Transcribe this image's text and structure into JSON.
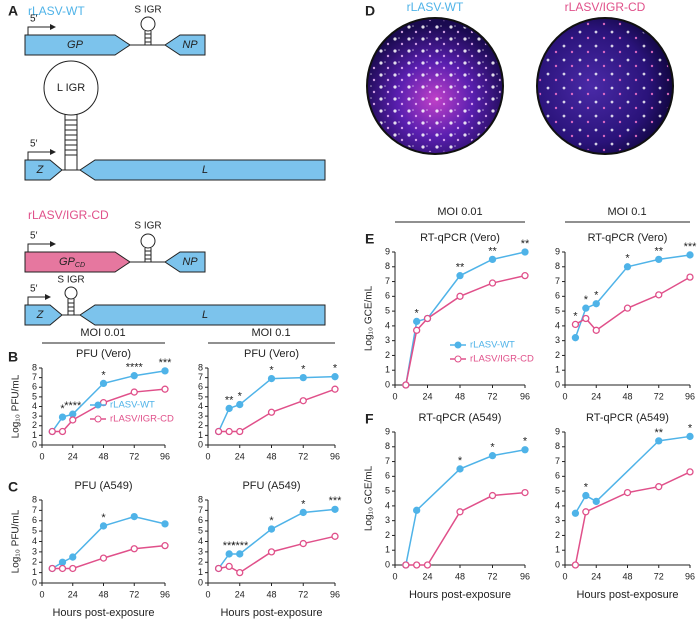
{
  "panel_labels": [
    "A",
    "B",
    "C",
    "D",
    "E",
    "F"
  ],
  "diagram": {
    "wt": {
      "label": "rLASV-WT",
      "s_segment": {
        "five_prime": "5′",
        "igr": "S IGR",
        "gene1": "GP",
        "gene2": "NP"
      },
      "l_segment": {
        "five_prime": "5′",
        "igr": "L IGR",
        "gene1": "Z",
        "gene2": "L"
      }
    },
    "cd": {
      "label": "rLASV/IGR-CD",
      "s_segment": {
        "five_prime": "5′",
        "igr": "S IGR",
        "gene1": {
          "main": "GP",
          "sub": "CD"
        },
        "gene2": "NP"
      },
      "l_segment": {
        "five_prime": "5′",
        "igr": "S IGR",
        "gene1": "Z",
        "gene2": "L"
      }
    }
  },
  "images": {
    "titles": [
      "rLASV-WT",
      "rLASV/IGR-CD"
    ]
  },
  "group_headers": [
    "MOI 0.01",
    "MOI 0.1",
    "MOI 0.01",
    "MOI 0.1"
  ],
  "chart_data": [
    {
      "type": "line",
      "title": "PFU (Vero)",
      "ylabel": "Log₁₀ PFU/mL",
      "x": [
        8,
        16,
        24,
        48,
        72,
        96
      ],
      "xlim": [
        0,
        96
      ],
      "xticks": [
        0,
        24,
        48,
        72,
        96
      ],
      "ylim": [
        0,
        8
      ],
      "yticks": [
        0,
        1,
        2,
        3,
        4,
        5,
        6,
        7,
        8
      ],
      "legend": "lower right",
      "series": [
        {
          "name": "rLASV-WT",
          "color": "#4fb3e8",
          "marker": "filled",
          "values": [
            1.4,
            2.9,
            3.2,
            6.4,
            7.2,
            7.7
          ]
        },
        {
          "name": "rLASV/IGR-CD",
          "color": "#e0508a",
          "marker": "open",
          "values": [
            1.4,
            1.4,
            2.6,
            4.4,
            5.5,
            5.8
          ]
        }
      ],
      "annotations": [
        {
          "x": 16,
          "text": "*"
        },
        {
          "x": 24,
          "text": "****"
        },
        {
          "x": 48,
          "text": "*"
        },
        {
          "x": 72,
          "text": "****"
        },
        {
          "x": 96,
          "text": "***"
        }
      ]
    },
    {
      "type": "line",
      "title": "PFU (Vero)",
      "x": [
        8,
        16,
        24,
        48,
        72,
        96
      ],
      "xlim": [
        0,
        96
      ],
      "xticks": [
        0,
        24,
        48,
        72,
        96
      ],
      "ylim": [
        0,
        8
      ],
      "yticks": [
        0,
        1,
        2,
        3,
        4,
        5,
        6,
        7,
        8
      ],
      "series": [
        {
          "name": "rLASV-WT",
          "color": "#4fb3e8",
          "marker": "filled",
          "values": [
            1.4,
            3.8,
            4.2,
            6.9,
            7.0,
            7.1
          ]
        },
        {
          "name": "rLASV/IGR-CD",
          "color": "#e0508a",
          "marker": "open",
          "values": [
            1.4,
            1.4,
            1.4,
            3.4,
            4.6,
            5.8
          ]
        }
      ],
      "annotations": [
        {
          "x": 16,
          "text": "**"
        },
        {
          "x": 24,
          "text": "*"
        },
        {
          "x": 48,
          "text": "*"
        },
        {
          "x": 72,
          "text": "*"
        },
        {
          "x": 96,
          "text": "*"
        }
      ]
    },
    {
      "type": "line",
      "title": "PFU (A549)",
      "ylabel": "Log₁₀ PFU/mL",
      "xlabel": "Hours post-exposure",
      "x": [
        8,
        16,
        24,
        48,
        72,
        96
      ],
      "xlim": [
        0,
        96
      ],
      "xticks": [
        0,
        24,
        48,
        72,
        96
      ],
      "ylim": [
        0,
        8
      ],
      "yticks": [
        0,
        1,
        2,
        3,
        4,
        5,
        6,
        7,
        8
      ],
      "series": [
        {
          "name": "rLASV-WT",
          "color": "#4fb3e8",
          "marker": "filled",
          "values": [
            1.4,
            2.0,
            2.5,
            5.5,
            6.4,
            5.7
          ]
        },
        {
          "name": "rLASV/IGR-CD",
          "color": "#e0508a",
          "marker": "open",
          "values": [
            1.4,
            1.4,
            1.4,
            2.4,
            3.3,
            3.6
          ]
        }
      ],
      "annotations": [
        {
          "x": 48,
          "text": "*"
        }
      ]
    },
    {
      "type": "line",
      "title": "PFU (A549)",
      "xlabel": "Hours post-exposure",
      "x": [
        8,
        16,
        24,
        48,
        72,
        96
      ],
      "xlim": [
        0,
        96
      ],
      "xticks": [
        0,
        24,
        48,
        72,
        96
      ],
      "ylim": [
        0,
        8
      ],
      "yticks": [
        0,
        1,
        2,
        3,
        4,
        5,
        6,
        7,
        8
      ],
      "series": [
        {
          "name": "rLASV-WT",
          "color": "#4fb3e8",
          "marker": "filled",
          "values": [
            1.4,
            2.8,
            2.8,
            5.2,
            6.8,
            7.1
          ]
        },
        {
          "name": "rLASV/IGR-CD",
          "color": "#e0508a",
          "marker": "open",
          "values": [
            1.4,
            1.6,
            1.0,
            3.0,
            3.8,
            4.5
          ]
        }
      ],
      "annotations": [
        {
          "x": 16,
          "text": "***"
        },
        {
          "x": 24,
          "text": "****"
        },
        {
          "x": 48,
          "text": "*"
        },
        {
          "x": 72,
          "text": "*"
        },
        {
          "x": 96,
          "text": "***"
        }
      ]
    },
    {
      "type": "line",
      "title": "RT-qPCR (Vero)",
      "ylabel": "Log₁₀ GCE/mL",
      "x": [
        8,
        16,
        24,
        48,
        72,
        96
      ],
      "xlim": [
        0,
        96
      ],
      "xticks": [
        0,
        24,
        48,
        72,
        96
      ],
      "ylim": [
        0,
        9
      ],
      "yticks": [
        0,
        1,
        2,
        3,
        4,
        5,
        6,
        7,
        8,
        9
      ],
      "legend": "lower right",
      "series": [
        {
          "name": "rLASV-WT",
          "color": "#4fb3e8",
          "marker": "filled",
          "values": [
            0,
            4.3,
            4.5,
            7.4,
            8.5,
            9.0
          ]
        },
        {
          "name": "rLASV/IGR-CD",
          "color": "#e0508a",
          "marker": "open",
          "values": [
            0,
            3.7,
            4.5,
            6.0,
            6.9,
            7.4
          ]
        }
      ],
      "annotations": [
        {
          "x": 16,
          "text": "*"
        },
        {
          "x": 48,
          "text": "**"
        },
        {
          "x": 72,
          "text": "**"
        },
        {
          "x": 96,
          "text": "**"
        }
      ]
    },
    {
      "type": "line",
      "title": "RT-qPCR (Vero)",
      "x": [
        8,
        16,
        24,
        48,
        72,
        96
      ],
      "xlim": [
        0,
        96
      ],
      "xticks": [
        0,
        24,
        48,
        72,
        96
      ],
      "ylim": [
        0,
        9
      ],
      "yticks": [
        0,
        1,
        2,
        3,
        4,
        5,
        6,
        7,
        8,
        9
      ],
      "series": [
        {
          "name": "rLASV-WT",
          "color": "#4fb3e8",
          "marker": "filled",
          "values": [
            3.2,
            5.2,
            5.5,
            8.0,
            8.5,
            8.8
          ]
        },
        {
          "name": "rLASV/IGR-CD",
          "color": "#e0508a",
          "marker": "open",
          "values": [
            4.1,
            4.5,
            3.7,
            5.2,
            6.1,
            7.3
          ]
        }
      ],
      "annotations": [
        {
          "x": 8,
          "text": "*"
        },
        {
          "x": 16,
          "text": "*"
        },
        {
          "x": 24,
          "text": "*"
        },
        {
          "x": 48,
          "text": "*"
        },
        {
          "x": 72,
          "text": "**"
        },
        {
          "x": 96,
          "text": "***"
        }
      ]
    },
    {
      "type": "line",
      "title": "RT-qPCR (A549)",
      "ylabel": "Log₁₀ GCE/mL",
      "xlabel": "Hours post-exposure",
      "xlim": [
        0,
        96
      ],
      "xticks": [
        0,
        24,
        48,
        72,
        96
      ],
      "ylim": [
        0,
        9
      ],
      "yticks": [
        0,
        1,
        2,
        3,
        4,
        5,
        6,
        7,
        8,
        9
      ],
      "series": [
        {
          "name": "rLASV-WT",
          "color": "#4fb3e8",
          "marker": "filled",
          "x": [
            8,
            16,
            48,
            72,
            96
          ],
          "values": [
            0,
            3.7,
            6.5,
            7.4,
            7.8
          ]
        },
        {
          "name": "rLASV/IGR-CD",
          "color": "#e0508a",
          "marker": "open",
          "x": [
            8,
            16,
            24,
            48,
            72,
            96
          ],
          "values": [
            0,
            0,
            0,
            3.6,
            4.7,
            4.9
          ]
        }
      ],
      "annotations": [
        {
          "x": 48,
          "text": "*"
        },
        {
          "x": 72,
          "text": "*"
        },
        {
          "x": 96,
          "text": "*"
        }
      ]
    },
    {
      "type": "line",
      "title": "RT-qPCR (A549)",
      "xlabel": "Hours post-exposure",
      "xlim": [
        0,
        96
      ],
      "xticks": [
        0,
        24,
        48,
        72,
        96
      ],
      "ylim": [
        0,
        9
      ],
      "yticks": [
        0,
        1,
        2,
        3,
        4,
        5,
        6,
        7,
        8,
        9
      ],
      "series": [
        {
          "name": "rLASV-WT",
          "color": "#4fb3e8",
          "marker": "filled",
          "x": [
            8,
            16,
            24,
            72,
            96
          ],
          "values": [
            3.5,
            4.7,
            4.3,
            8.4,
            8.7
          ]
        },
        {
          "name": "rLASV/IGR-CD",
          "color": "#e0508a",
          "marker": "open",
          "x": [
            8,
            16,
            48,
            72,
            96
          ],
          "values": [
            0,
            3.6,
            4.9,
            5.3,
            6.3
          ]
        }
      ],
      "annotations": [
        {
          "x": 16,
          "text": "*"
        },
        {
          "x": 72,
          "text": "**"
        },
        {
          "x": 96,
          "text": "*"
        }
      ]
    }
  ]
}
